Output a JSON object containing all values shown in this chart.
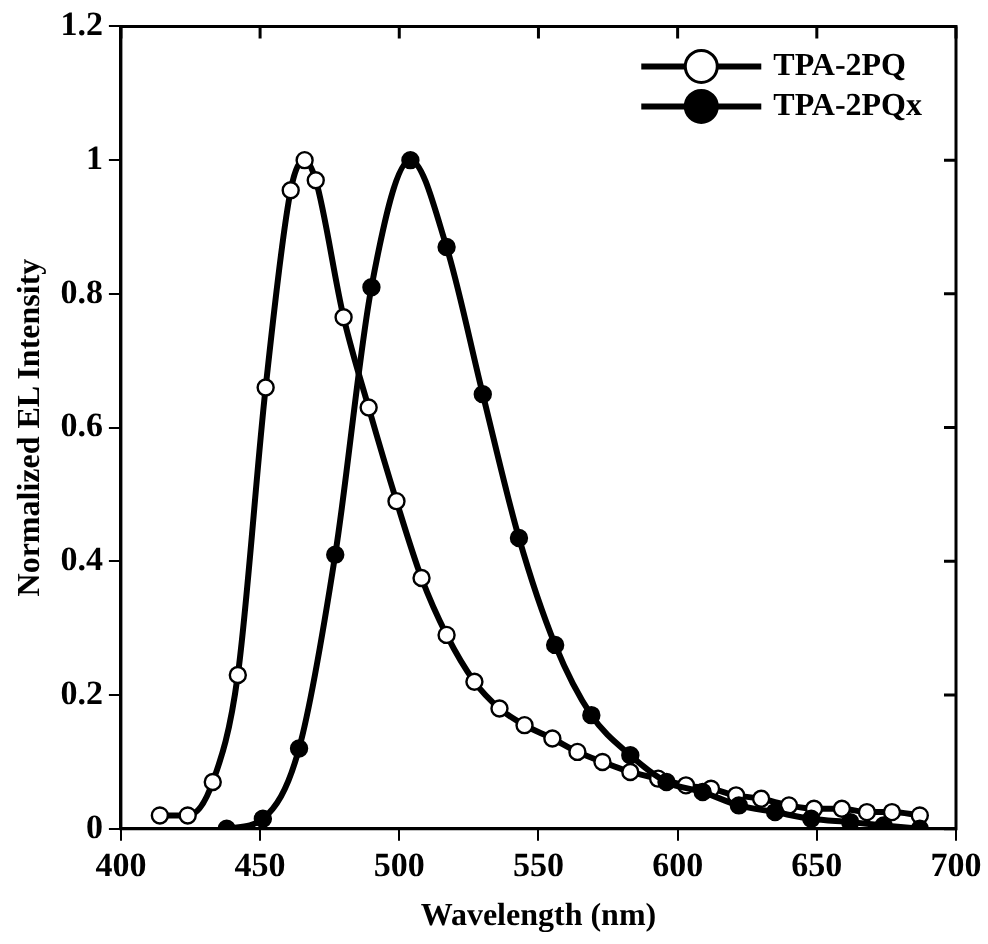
{
  "chart_data": {
    "type": "line",
    "xlabel": "Wavelength (nm)",
    "ylabel": "Normalized EL Intensity",
    "xlim": [
      400,
      700
    ],
    "xticks": [
      400,
      450,
      500,
      550,
      600,
      650,
      700
    ],
    "ylim": [
      0,
      1.2
    ],
    "yticks": [
      0,
      0.2,
      0.4,
      0.6,
      0.8,
      1,
      1.2
    ],
    "grid": false,
    "legend": "top right",
    "marker": "circle",
    "line_style": "solid",
    "series": [
      {
        "name": "TPA-2PQ",
        "color": "#000000",
        "x": [
          414,
          424,
          433,
          442,
          452,
          461,
          466,
          470,
          480,
          489,
          499,
          508,
          517,
          527,
          536,
          545,
          555,
          564,
          573,
          583,
          593,
          603,
          612,
          621,
          630,
          640,
          649,
          659,
          668,
          677,
          687
        ],
        "values": [
          0.02,
          0.02,
          0.07,
          0.23,
          0.66,
          0.955,
          1.0,
          0.97,
          0.765,
          0.63,
          0.49,
          0.375,
          0.29,
          0.22,
          0.18,
          0.155,
          0.135,
          0.115,
          0.1,
          0.085,
          0.075,
          0.065,
          0.06,
          0.05,
          0.045,
          0.035,
          0.03,
          0.03,
          0.025,
          0.025,
          0.02
        ]
      },
      {
        "name": "TPA-2PQx",
        "color": "#000000",
        "x": [
          438,
          451,
          464,
          477,
          490,
          504,
          517,
          530,
          543,
          556,
          569,
          583,
          596,
          609,
          622,
          635,
          648,
          662,
          674,
          687
        ],
        "values": [
          0,
          0.015,
          0.12,
          0.41,
          0.81,
          1.0,
          0.87,
          0.65,
          0.435,
          0.275,
          0.17,
          0.11,
          0.07,
          0.055,
          0.035,
          0.025,
          0.015,
          0.01,
          0.005,
          0.0
        ]
      }
    ]
  }
}
